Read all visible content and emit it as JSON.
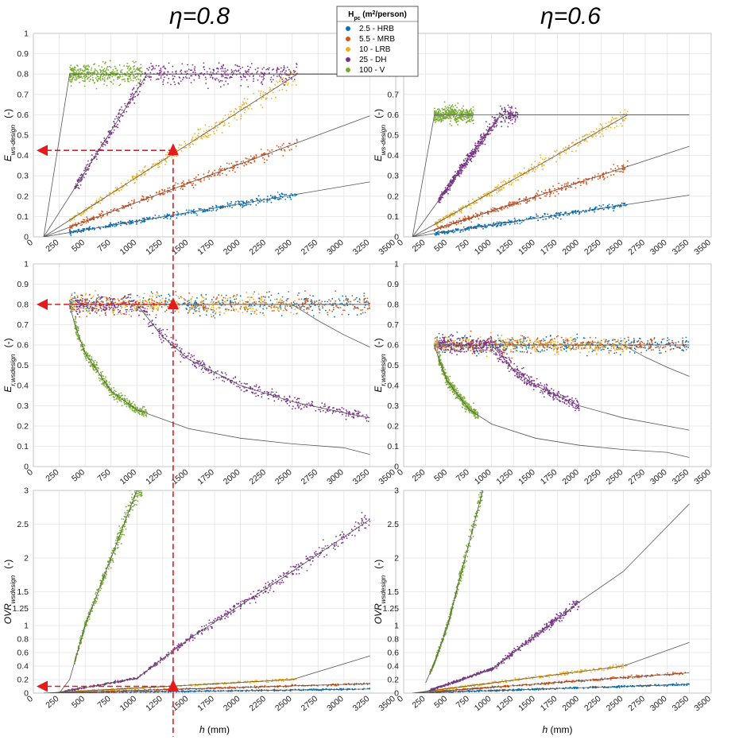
{
  "figure": {
    "columns": [
      {
        "title": "η=0.8",
        "eta": 0.8
      },
      {
        "title": "η=0.6",
        "eta": 0.6
      }
    ],
    "legend": {
      "title_main": "H",
      "title_sub": "pc",
      "title_unit_pre": " (m",
      "title_unit_sup": "2",
      "title_unit_post": "/person)",
      "entries": [
        {
          "label": "2.5 - HRB",
          "color": "#0072BD",
          "Hpc": 2.5
        },
        {
          "label": "5.5 - MRB",
          "color": "#D95319",
          "Hpc": 5.5
        },
        {
          "label": "10 - LRB",
          "color": "#EDB120",
          "Hpc": 10
        },
        {
          "label": "25 - DH",
          "color": "#7E2F8E",
          "Hpc": 25
        },
        {
          "label": "100 - V",
          "color": "#77AC30",
          "Hpc": 100
        }
      ]
    },
    "annotation_color": "#E41A1C",
    "model_line_color": "#555555",
    "grid": true
  },
  "chart_data": [
    {
      "type": "scatter",
      "row": 0,
      "col": 0,
      "eta": 0.8,
      "ylabel_main": "E",
      "ylabel_sub": "ws-design",
      "ylabel_unit": "(-)",
      "xlim": [
        0,
        3500
      ],
      "ylim": [
        0,
        1
      ],
      "xticks": [
        "0",
        "250",
        "500",
        "750",
        "1000",
        "1250",
        "1500",
        "1750",
        "2000",
        "2250",
        "2500",
        "2750",
        "3000",
        "3250",
        "3500"
      ],
      "yticks": [
        "0",
        "0.1",
        "0.2",
        "0.3",
        "0.4",
        "0.5",
        "0.6",
        "0.7",
        "0.8",
        "0.9",
        "1"
      ],
      "series": [
        {
          "name": "2.5 - HRB",
          "x_range": [
            350,
            2550
          ],
          "model": [
            [
              100,
              0
            ],
            [
              3250,
              0.27
            ]
          ]
        },
        {
          "name": "5.5 - MRB",
          "x_range": [
            350,
            2550
          ],
          "model": [
            [
              100,
              0
            ],
            [
              3250,
              0.595
            ]
          ]
        },
        {
          "name": "10 - LRB",
          "x_range": [
            350,
            2550
          ],
          "model": [
            [
              100,
              0
            ],
            [
              2550,
              0.8
            ],
            [
              3250,
              0.8
            ]
          ]
        },
        {
          "name": "25 - DH",
          "x_range": [
            400,
            2550
          ],
          "model": [
            [
              100,
              0
            ],
            [
              1100,
              0.8
            ],
            [
              3250,
              0.8
            ]
          ]
        },
        {
          "name": "100 - V",
          "x_range": [
            350,
            1050
          ],
          "model": [
            [
              100,
              0
            ],
            [
              350,
              0.8
            ],
            [
              3250,
              0.8
            ]
          ]
        }
      ]
    },
    {
      "type": "scatter",
      "row": 0,
      "col": 1,
      "eta": 0.6,
      "ylabel_main": "E",
      "ylabel_sub": "ws-design",
      "ylabel_unit": "(-)",
      "xlim": [
        0,
        3500
      ],
      "ylim": [
        0,
        1
      ],
      "xticks": [
        "0",
        "250",
        "500",
        "750",
        "1000",
        "1250",
        "1500",
        "1750",
        "2000",
        "2250",
        "2500",
        "2750",
        "3000",
        "3250",
        "3500"
      ],
      "yticks": [
        "0",
        "0.1",
        "0.2",
        "0.3",
        "0.4",
        "0.5",
        "0.6",
        "0.7",
        "0.8",
        "0.9",
        "1"
      ],
      "series": [
        {
          "name": "2.5 - HRB",
          "x_range": [
            350,
            2550
          ],
          "model": [
            [
              100,
              0
            ],
            [
              3250,
              0.205
            ]
          ]
        },
        {
          "name": "5.5 - MRB",
          "x_range": [
            350,
            2550
          ],
          "model": [
            [
              100,
              0
            ],
            [
              3250,
              0.445
            ]
          ]
        },
        {
          "name": "10 - LRB",
          "x_range": [
            350,
            2550
          ],
          "model": [
            [
              100,
              0
            ],
            [
              2550,
              0.6
            ],
            [
              3250,
              0.6
            ]
          ]
        },
        {
          "name": "25 - DH",
          "x_range": [
            400,
            1300
          ],
          "model": [
            [
              100,
              0
            ],
            [
              1100,
              0.6
            ],
            [
              3250,
              0.6
            ]
          ]
        },
        {
          "name": "100 - V",
          "x_range": [
            350,
            800
          ],
          "model": [
            [
              100,
              0
            ],
            [
              350,
              0.6
            ],
            [
              3250,
              0.6
            ]
          ]
        }
      ]
    },
    {
      "type": "scatter",
      "row": 1,
      "col": 0,
      "eta": 0.8,
      "ylabel_main": "E",
      "ylabel_sub": "r,wsdesign",
      "ylabel_unit": "(-)",
      "xlim": [
        0,
        3500
      ],
      "ylim": [
        0,
        1
      ],
      "xticks": [
        "0",
        "250",
        "500",
        "750",
        "1000",
        "1250",
        "1500",
        "1750",
        "2000",
        "2250",
        "2500",
        "2750",
        "3000",
        "3250",
        "3500"
      ],
      "yticks": [
        "0",
        "0.1",
        "0.2",
        "0.3",
        "0.4",
        "0.5",
        "0.6",
        "0.7",
        "0.8",
        "0.9",
        "1"
      ],
      "series": [
        {
          "name": "2.5 - HRB",
          "x_range": [
            350,
            3250
          ],
          "model": [
            [
              350,
              0.8
            ],
            [
              3250,
              0.8
            ]
          ]
        },
        {
          "name": "5.5 - MRB",
          "x_range": [
            350,
            3250
          ],
          "model": [
            [
              350,
              0.8
            ],
            [
              3250,
              0.8
            ]
          ]
        },
        {
          "name": "10 - LRB",
          "x_range": [
            350,
            2550
          ],
          "model": [
            [
              350,
              0.8
            ],
            [
              2500,
              0.8
            ],
            [
              2750,
              0.72
            ],
            [
              3000,
              0.65
            ],
            [
              3250,
              0.59
            ]
          ]
        },
        {
          "name": "25 - DH",
          "x_range": [
            400,
            3250
          ],
          "model": [
            [
              350,
              0.8
            ],
            [
              1000,
              0.8
            ],
            [
              1250,
              0.64
            ],
            [
              1500,
              0.53
            ],
            [
              2000,
              0.4
            ],
            [
              2500,
              0.32
            ],
            [
              3000,
              0.266
            ],
            [
              3250,
              0.24
            ]
          ]
        },
        {
          "name": "100 - V",
          "x_range": [
            400,
            1100
          ],
          "model": [
            [
              350,
              0.8
            ],
            [
              400,
              0.7
            ],
            [
              500,
              0.56
            ],
            [
              750,
              0.373
            ],
            [
              1000,
              0.28
            ],
            [
              1500,
              0.187
            ],
            [
              2000,
              0.14
            ],
            [
              2500,
              0.112
            ],
            [
              3000,
              0.093
            ],
            [
              3250,
              0.06
            ]
          ]
        }
      ]
    },
    {
      "type": "scatter",
      "row": 1,
      "col": 1,
      "eta": 0.6,
      "ylabel_main": "E",
      "ylabel_sub": "r,wsdesign",
      "ylabel_unit": "(-)",
      "xlim": [
        0,
        3500
      ],
      "ylim": [
        0,
        1
      ],
      "xticks": [
        "0",
        "250",
        "500",
        "750",
        "1000",
        "1250",
        "1500",
        "1750",
        "2000",
        "2250",
        "2500",
        "2750",
        "3000",
        "3250",
        "3500"
      ],
      "yticks": [
        "0",
        "0.1",
        "0.2",
        "0.3",
        "0.4",
        "0.5",
        "0.6",
        "0.7",
        "0.8",
        "0.9",
        "1"
      ],
      "series": [
        {
          "name": "2.5 - HRB",
          "x_range": [
            350,
            3250
          ],
          "model": [
            [
              350,
              0.6
            ],
            [
              3250,
              0.6
            ]
          ]
        },
        {
          "name": "5.5 - MRB",
          "x_range": [
            350,
            3250
          ],
          "model": [
            [
              350,
              0.6
            ],
            [
              3250,
              0.6
            ]
          ]
        },
        {
          "name": "10 - LRB",
          "x_range": [
            350,
            2550
          ],
          "model": [
            [
              350,
              0.6
            ],
            [
              2500,
              0.6
            ],
            [
              2750,
              0.54
            ],
            [
              3000,
              0.49
            ],
            [
              3250,
              0.445
            ]
          ]
        },
        {
          "name": "25 - DH",
          "x_range": [
            400,
            2000
          ],
          "model": [
            [
              350,
              0.6
            ],
            [
              1000,
              0.6
            ],
            [
              1250,
              0.48
            ],
            [
              1500,
              0.4
            ],
            [
              2000,
              0.3
            ],
            [
              2500,
              0.24
            ],
            [
              3000,
              0.2
            ],
            [
              3250,
              0.18
            ]
          ]
        },
        {
          "name": "100 - V",
          "x_range": [
            400,
            850
          ],
          "model": [
            [
              350,
              0.6
            ],
            [
              400,
              0.53
            ],
            [
              500,
              0.42
            ],
            [
              750,
              0.28
            ],
            [
              1000,
              0.21
            ],
            [
              1500,
              0.14
            ],
            [
              2000,
              0.105
            ],
            [
              2500,
              0.084
            ],
            [
              3000,
              0.07
            ],
            [
              3250,
              0.045
            ]
          ]
        }
      ]
    },
    {
      "type": "scatter",
      "row": 2,
      "col": 0,
      "eta": 0.8,
      "ylabel_main": "OVR",
      "ylabel_sub": "wsdesign",
      "ylabel_unit": "(-)",
      "xlabel_main": "h",
      "xlabel_unit": " (mm)",
      "xlim": [
        0,
        3500
      ],
      "ylim": [
        0,
        3
      ],
      "xticks": [
        "0",
        "250",
        "500",
        "750",
        "1000",
        "1250",
        "1500",
        "1750",
        "2000",
        "2250",
        "2500",
        "2750",
        "3000",
        "3250",
        "3500"
      ],
      "yticks": [
        "0",
        "0.2",
        "0.4",
        "0.6",
        "0.8",
        "1",
        "1.25",
        "1.5",
        "2",
        "2.5",
        "3"
      ],
      "series": [
        {
          "name": "2.5 - HRB",
          "x_range": [
            250,
            3250
          ],
          "model": [
            [
              100,
              0
            ],
            [
              3250,
              0.06
            ]
          ]
        },
        {
          "name": "5.5 - MRB",
          "x_range": [
            250,
            3250
          ],
          "model": [
            [
              100,
              0
            ],
            [
              3250,
              0.14
            ]
          ]
        },
        {
          "name": "10 - LRB",
          "x_range": [
            250,
            2550
          ],
          "model": [
            [
              100,
              0
            ],
            [
              2500,
              0.2
            ],
            [
              3250,
              0.55
            ]
          ]
        },
        {
          "name": "25 - DH",
          "x_range": [
            300,
            3250
          ],
          "model": [
            [
              200,
              0
            ],
            [
              1000,
              0.22
            ],
            [
              1500,
              0.8
            ],
            [
              2000,
              1.3
            ],
            [
              2500,
              1.8
            ],
            [
              3250,
              2.57
            ]
          ]
        },
        {
          "name": "100 - V",
          "x_range": [
            400,
            1050
          ],
          "model": [
            [
              250,
              0
            ],
            [
              350,
              0.2
            ],
            [
              500,
              1
            ],
            [
              1000,
              3
            ]
          ]
        }
      ]
    },
    {
      "type": "scatter",
      "row": 2,
      "col": 1,
      "eta": 0.6,
      "ylabel_main": "OVR",
      "ylabel_sub": "wsdesign",
      "ylabel_unit": "(-)",
      "xlabel_main": "h",
      "xlabel_unit": " (mm)",
      "xlim": [
        0,
        3500
      ],
      "ylim": [
        0,
        3
      ],
      "xticks": [
        "0",
        "250",
        "500",
        "750",
        "1000",
        "1250",
        "1500",
        "1750",
        "2000",
        "2250",
        "2500",
        "2750",
        "3000",
        "3250",
        "3500"
      ],
      "yticks": [
        "0",
        "0.2",
        "0.4",
        "0.6",
        "0.8",
        "1",
        "1.25",
        "1.5",
        "2",
        "2.5",
        "3"
      ],
      "series": [
        {
          "name": "2.5 - HRB",
          "x_range": [
            300,
            3250
          ],
          "model": [
            [
              100,
              0
            ],
            [
              3250,
              0.13
            ]
          ]
        },
        {
          "name": "5.5 - MRB",
          "x_range": [
            300,
            3250
          ],
          "model": [
            [
              100,
              0
            ],
            [
              3250,
              0.3
            ]
          ]
        },
        {
          "name": "10 - LRB",
          "x_range": [
            300,
            2550
          ],
          "model": [
            [
              100,
              0
            ],
            [
              2500,
              0.4
            ],
            [
              3250,
              0.75
            ]
          ]
        },
        {
          "name": "25 - DH",
          "x_range": [
            300,
            2000
          ],
          "model": [
            [
              200,
              0
            ],
            [
              1000,
              0.35
            ],
            [
              1500,
              0.85
            ],
            [
              2000,
              1.35
            ],
            [
              2500,
              1.8
            ],
            [
              3250,
              2.8
            ]
          ]
        },
        {
          "name": "100 - V",
          "x_range": [
            300,
            900
          ],
          "model": [
            [
              250,
              0.15
            ],
            [
              350,
              0.45
            ],
            [
              500,
              1
            ],
            [
              900,
              3
            ]
          ]
        }
      ]
    }
  ]
}
